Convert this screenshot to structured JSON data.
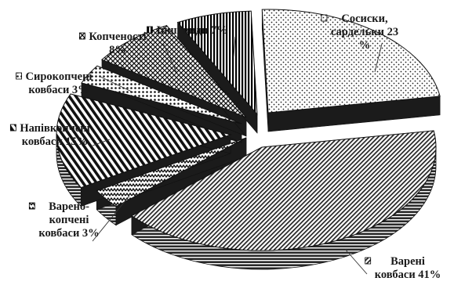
{
  "chart_data": {
    "type": "pie",
    "style": "3d-exploded",
    "slices": [
      {
        "key": "sausages",
        "lines": [
          "Сосиски,",
          "сардельки 23",
          "%"
        ],
        "value": 23,
        "color": "#cfcfcf",
        "pattern": "dots"
      },
      {
        "key": "boiled",
        "lines": [
          "Варені",
          "ковбаси 41%"
        ],
        "value": 41,
        "color": "#3a3a3a",
        "pattern": "diagonal-fine"
      },
      {
        "key": "boiled-smoked",
        "lines": [
          "Варено-",
          "копчені",
          "ковбаси 3%"
        ],
        "value": 3,
        "color": "#2a2a2a",
        "pattern": "zigzag"
      },
      {
        "key": "semi-smoked",
        "lines": [
          "Напівкопчені",
          "ковбаси 15%"
        ],
        "value": 15,
        "color": "#222222",
        "pattern": "diagonal-thick"
      },
      {
        "key": "raw-smoked",
        "lines": [
          "Сирокопчені",
          "ковбаси 3%"
        ],
        "value": 3,
        "color": "#555555",
        "pattern": "dots-coarse"
      },
      {
        "key": "smoked-meats",
        "lines": [
          "Копченості",
          "8%"
        ],
        "value": 8,
        "color": "#444444",
        "pattern": "crosshatch"
      },
      {
        "key": "other",
        "lines": [
          "Інші види 7%"
        ],
        "value": 7,
        "color": "#111111",
        "pattern": "vertical"
      }
    ]
  }
}
